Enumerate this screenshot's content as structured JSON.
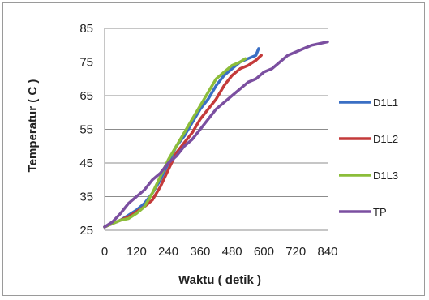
{
  "chart_data": {
    "type": "line",
    "xlabel": "Waktu ( detik )",
    "ylabel": "Temperatur  ( C )",
    "xlim": [
      0,
      840
    ],
    "ylim": [
      25,
      85
    ],
    "xticks": [
      0,
      120,
      240,
      360,
      480,
      600,
      720,
      840
    ],
    "yticks": [
      25,
      35,
      45,
      55,
      65,
      75,
      85
    ],
    "grid": "horizontal",
    "legend_position": "right",
    "series": [
      {
        "name": "D1L1",
        "color": "#3a6fc4",
        "points": [
          [
            0,
            26
          ],
          [
            30,
            27
          ],
          [
            60,
            28
          ],
          [
            90,
            29.5
          ],
          [
            120,
            31
          ],
          [
            150,
            33
          ],
          [
            180,
            36
          ],
          [
            210,
            40
          ],
          [
            240,
            45
          ],
          [
            270,
            50
          ],
          [
            300,
            53
          ],
          [
            330,
            57
          ],
          [
            360,
            61
          ],
          [
            390,
            64
          ],
          [
            420,
            68
          ],
          [
            450,
            71
          ],
          [
            480,
            73
          ],
          [
            510,
            75
          ],
          [
            540,
            76
          ],
          [
            570,
            77
          ],
          [
            580,
            79
          ]
        ]
      },
      {
        "name": "D1L2",
        "color": "#c43a3a",
        "points": [
          [
            0,
            26
          ],
          [
            30,
            27
          ],
          [
            60,
            28
          ],
          [
            90,
            29
          ],
          [
            120,
            30.5
          ],
          [
            150,
            32
          ],
          [
            180,
            34
          ],
          [
            210,
            38
          ],
          [
            240,
            43
          ],
          [
            270,
            48
          ],
          [
            300,
            51
          ],
          [
            330,
            54
          ],
          [
            360,
            58
          ],
          [
            390,
            61
          ],
          [
            420,
            64
          ],
          [
            450,
            68
          ],
          [
            480,
            71
          ],
          [
            510,
            73
          ],
          [
            540,
            74
          ],
          [
            570,
            75.5
          ],
          [
            590,
            77
          ]
        ]
      },
      {
        "name": "D1L3",
        "color": "#8cbd3a",
        "points": [
          [
            0,
            26
          ],
          [
            30,
            27
          ],
          [
            60,
            28
          ],
          [
            90,
            28.5
          ],
          [
            120,
            30
          ],
          [
            150,
            32
          ],
          [
            180,
            36
          ],
          [
            210,
            41
          ],
          [
            240,
            46
          ],
          [
            270,
            50
          ],
          [
            300,
            54
          ],
          [
            330,
            58
          ],
          [
            360,
            62
          ],
          [
            390,
            66
          ],
          [
            420,
            70
          ],
          [
            450,
            72
          ],
          [
            480,
            74
          ],
          [
            510,
            75
          ],
          [
            530,
            76
          ]
        ]
      },
      {
        "name": "TP",
        "color": "#7b4fa0",
        "points": [
          [
            0,
            26
          ],
          [
            30,
            27.5
          ],
          [
            60,
            30
          ],
          [
            90,
            33
          ],
          [
            120,
            35
          ],
          [
            150,
            37
          ],
          [
            180,
            40
          ],
          [
            210,
            42
          ],
          [
            240,
            45
          ],
          [
            270,
            47
          ],
          [
            300,
            50
          ],
          [
            330,
            52
          ],
          [
            360,
            55
          ],
          [
            390,
            58
          ],
          [
            420,
            61
          ],
          [
            450,
            63
          ],
          [
            480,
            65
          ],
          [
            510,
            67
          ],
          [
            540,
            69
          ],
          [
            570,
            70
          ],
          [
            600,
            72
          ],
          [
            630,
            73
          ],
          [
            660,
            75
          ],
          [
            690,
            77
          ],
          [
            720,
            78
          ],
          [
            750,
            79
          ],
          [
            780,
            80
          ],
          [
            810,
            80.5
          ],
          [
            840,
            81
          ]
        ]
      }
    ]
  }
}
